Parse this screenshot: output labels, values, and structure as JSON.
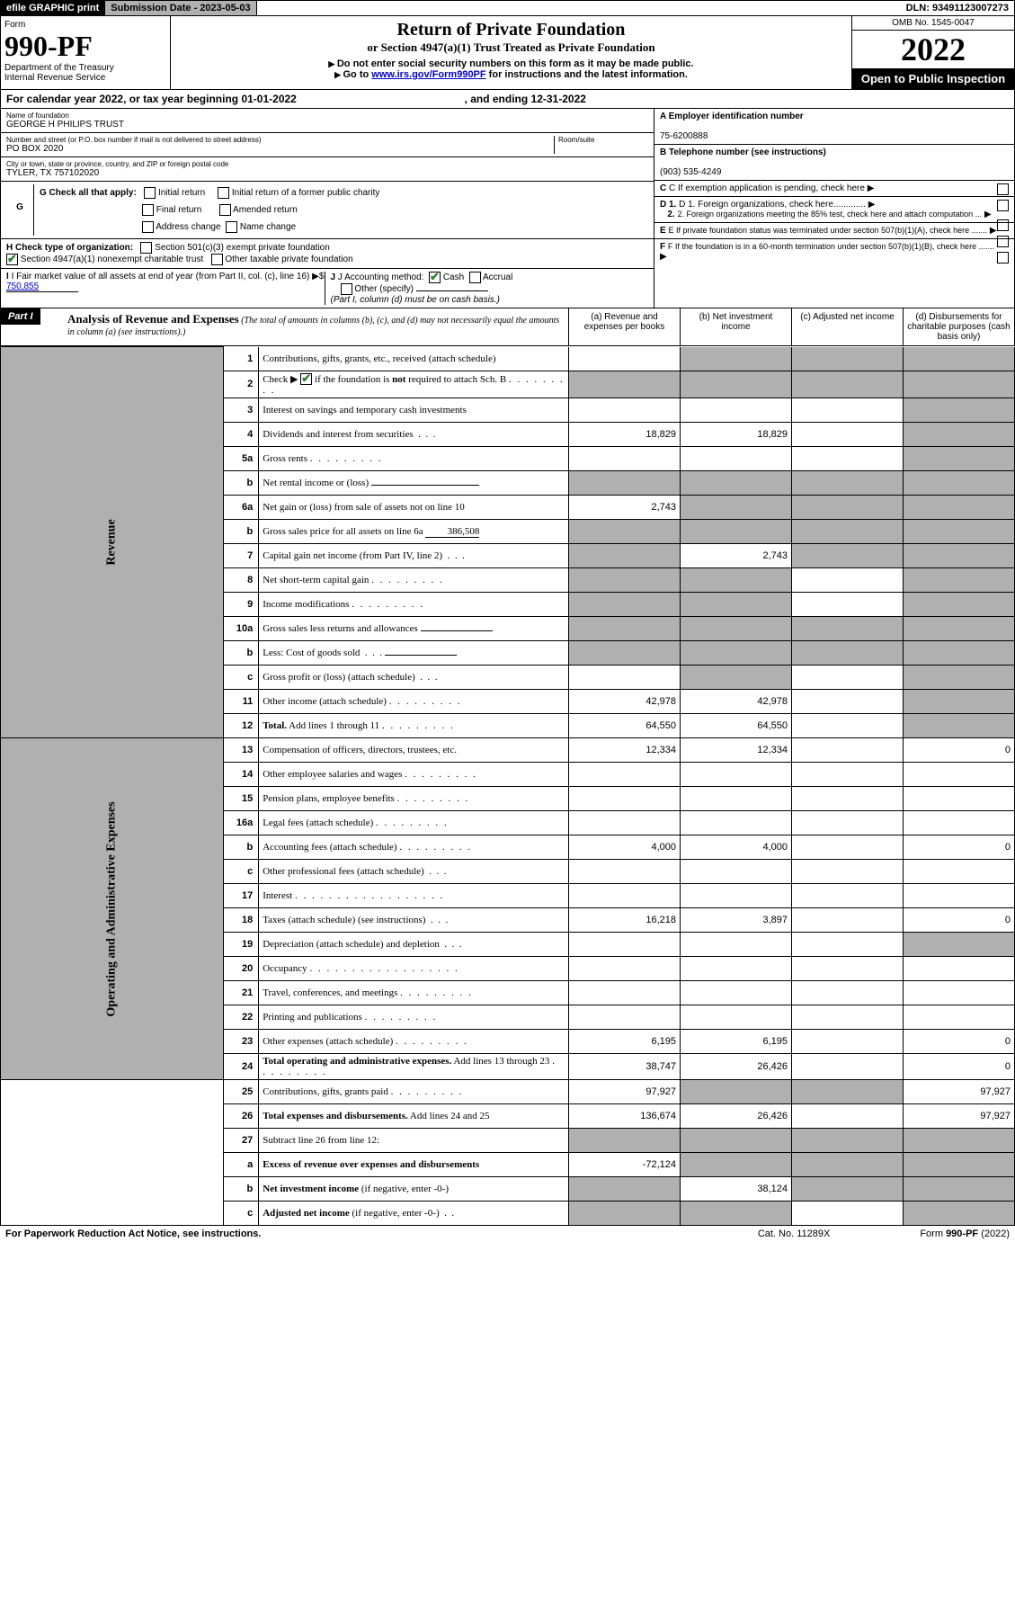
{
  "header": {
    "efile": "efile GRAPHIC print",
    "submission_label": "Submission Date - 2023-05-03",
    "dln": "DLN: 93491123007273"
  },
  "form": {
    "form_word": "Form",
    "form_no": "990-PF",
    "dept": "Department of the Treasury",
    "irs": "Internal Revenue Service",
    "title": "Return of Private Foundation",
    "subtitle": "or Section 4947(a)(1) Trust Treated as Private Foundation",
    "note1": "Do not enter social security numbers on this form as it may be made public.",
    "note2_a": "Go to ",
    "note2_link": "www.irs.gov/Form990PF",
    "note2_b": " for instructions and the latest information.",
    "omb": "OMB No. 1545-0047",
    "year": "2022",
    "open": "Open to Public Inspection"
  },
  "cy": {
    "pre": "For calendar year 2022, or tax year beginning ",
    "begin": "01-01-2022",
    "mid": ", and ending ",
    "end": "12-31-2022"
  },
  "id": {
    "name_lbl": "Name of foundation",
    "name": "GEORGE H PHILIPS TRUST",
    "addr_lbl": "Number and street (or P.O. box number if mail is not delivered to street address)",
    "room_lbl": "Room/suite",
    "addr": "PO BOX 2020",
    "city_lbl": "City or town, state or province, country, and ZIP or foreign postal code",
    "city": "TYLER, TX  757102020",
    "a_lbl": "A Employer identification number",
    "ein": "75-6200888",
    "b_lbl": "B Telephone number (see instructions)",
    "phone": "(903) 535-4249",
    "c_lbl": "C If exemption application is pending, check here",
    "d1": "D 1. Foreign organizations, check here.............",
    "d2": "2. Foreign organizations meeting the 85% test, check here and attach computation ...",
    "e_lbl": "E  If private foundation status was terminated under section 507(b)(1)(A), check here .......",
    "f_lbl": "F  If the foundation is in a 60-month termination under section 507(b)(1)(B), check here .......",
    "g_lbl": "G Check all that apply:",
    "g_opts": [
      "Initial return",
      "Final return",
      "Address change",
      "Initial return of a former public charity",
      "Amended return",
      "Name change"
    ],
    "h_lbl": "H Check type of organization:",
    "h1": "Section 501(c)(3) exempt private foundation",
    "h2": "Section 4947(a)(1) nonexempt charitable trust",
    "h3": "Other taxable private foundation",
    "i_lbl": "I Fair market value of all assets at end of year (from Part II, col. (c), line 16)",
    "i_val": "750,855",
    "j_lbl": "J Accounting method:",
    "j_cash": "Cash",
    "j_acc": "Accrual",
    "j_other": "Other (specify)",
    "j_note": "(Part I, column (d) must be on cash basis.)"
  },
  "part1": {
    "label": "Part I",
    "title": "Analysis of Revenue and Expenses",
    "note": " (The total of amounts in columns (b), (c), and (d) may not necessarily equal the amounts in column (a) (see instructions).)",
    "col_a": "(a)  Revenue and expenses per books",
    "col_b": "(b)  Net investment income",
    "col_c": "(c)  Adjusted net income",
    "col_d": "(d)  Disbursements for charitable purposes (cash basis only)",
    "side_rev": "Revenue",
    "side_exp": "Operating and Administrative Expenses"
  },
  "rows": {
    "r1": {
      "n": "1",
      "d": "Contributions, gifts, grants, etc., received (attach schedule)"
    },
    "r2": {
      "n": "2",
      "d": "Check ▶",
      "d2": " if the foundation is <b>not</b> required to attach Sch. B",
      "dots": true
    },
    "r3": {
      "n": "3",
      "d": "Interest on savings and temporary cash investments"
    },
    "r4": {
      "n": "4",
      "d": "Dividends and interest from securities",
      "a": "18,829",
      "b": "18,829"
    },
    "r5a": {
      "n": "5a",
      "d": "Gross rents",
      "dots": true
    },
    "r5b": {
      "n": "b",
      "d": "Net rental income or (loss)"
    },
    "r6a": {
      "n": "6a",
      "d": "Net gain or (loss) from sale of assets not on line 10",
      "a": "2,743"
    },
    "r6b": {
      "n": "b",
      "d": "Gross sales price for all assets on line 6a",
      "val": "386,508"
    },
    "r7": {
      "n": "7",
      "d": "Capital gain net income (from Part IV, line 2)",
      "b": "2,743"
    },
    "r8": {
      "n": "8",
      "d": "Net short-term capital gain",
      "dots": true
    },
    "r9": {
      "n": "9",
      "d": "Income modifications",
      "dots": true
    },
    "r10a": {
      "n": "10a",
      "d": "Gross sales less returns and allowances"
    },
    "r10b": {
      "n": "b",
      "d": "Less: Cost of goods sold"
    },
    "r10c": {
      "n": "c",
      "d": "Gross profit or (loss) (attach schedule)"
    },
    "r11": {
      "n": "11",
      "d": "Other income (attach schedule)",
      "a": "42,978",
      "b": "42,978"
    },
    "r12": {
      "n": "12",
      "d": "<b>Total.</b> Add lines 1 through 11",
      "a": "64,550",
      "b": "64,550"
    },
    "r13": {
      "n": "13",
      "d": "Compensation of officers, directors, trustees, etc.",
      "a": "12,334",
      "b": "12,334",
      "dd": "0"
    },
    "r14": {
      "n": "14",
      "d": "Other employee salaries and wages",
      "dots": true
    },
    "r15": {
      "n": "15",
      "d": "Pension plans, employee benefits",
      "dots": true
    },
    "r16a": {
      "n": "16a",
      "d": "Legal fees (attach schedule)",
      "dots": true
    },
    "r16b": {
      "n": "b",
      "d": "Accounting fees (attach schedule)",
      "a": "4,000",
      "b": "4,000",
      "dd": "0"
    },
    "r16c": {
      "n": "c",
      "d": "Other professional fees (attach schedule)"
    },
    "r17": {
      "n": "17",
      "d": "Interest",
      "dots": true
    },
    "r18": {
      "n": "18",
      "d": "Taxes (attach schedule) (see instructions)",
      "a": "16,218",
      "b": "3,897",
      "dd": "0"
    },
    "r19": {
      "n": "19",
      "d": "Depreciation (attach schedule) and depletion"
    },
    "r20": {
      "n": "20",
      "d": "Occupancy",
      "dots": true
    },
    "r21": {
      "n": "21",
      "d": "Travel, conferences, and meetings",
      "dots": true
    },
    "r22": {
      "n": "22",
      "d": "Printing and publications",
      "dots": true
    },
    "r23": {
      "n": "23",
      "d": "Other expenses (attach schedule)",
      "a": "6,195",
      "b": "6,195",
      "dd": "0"
    },
    "r24": {
      "n": "24",
      "d": "<b>Total operating and administrative expenses.</b> Add lines 13 through 23",
      "a": "38,747",
      "b": "26,426",
      "dd": "0"
    },
    "r25": {
      "n": "25",
      "d": "Contributions, gifts, grants paid",
      "a": "97,927",
      "dd": "97,927"
    },
    "r26": {
      "n": "26",
      "d": "<b>Total expenses and disbursements.</b> Add lines 24 and 25",
      "a": "136,674",
      "b": "26,426",
      "dd": "97,927"
    },
    "r27": {
      "n": "27",
      "d": "Subtract line 26 from line 12:"
    },
    "r27a": {
      "n": "a",
      "d": "<b>Excess of revenue over expenses and disbursements</b>",
      "a": "-72,124"
    },
    "r27b": {
      "n": "b",
      "d": "<b>Net investment income</b> (if negative, enter -0-)",
      "b": "38,124"
    },
    "r27c": {
      "n": "c",
      "d": "<b>Adjusted net income</b> (if negative, enter -0-)"
    }
  },
  "footer": {
    "left": "For Paperwork Reduction Act Notice, see instructions.",
    "mid": "Cat. No. 11289X",
    "right": "Form 990-PF (2022)"
  }
}
